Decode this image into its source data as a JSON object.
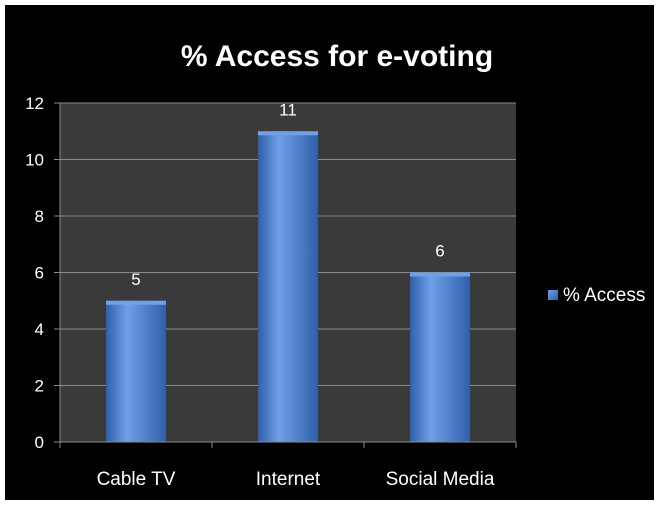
{
  "chart_data": {
    "type": "bar",
    "title": "% Access  for e-voting",
    "categories": [
      "Cable TV",
      "Internet",
      "Social Media"
    ],
    "series": [
      {
        "name": "% Access",
        "values": [
          5,
          11,
          6
        ]
      }
    ],
    "data_labels": [
      "5",
      "11",
      "6"
    ],
    "ylim": [
      0,
      12
    ],
    "yticks": [
      0,
      2,
      4,
      6,
      8,
      10,
      12
    ],
    "grid": true,
    "legend_position": "right",
    "colors": {
      "background": "#000000",
      "plot_area": "#3a3a3a",
      "bar": "#4a7fd0",
      "bar_light": "#6fa0e8",
      "bar_dark": "#2f5fa8",
      "text": "#ffffff",
      "gridline": "#8a8a8a"
    }
  }
}
